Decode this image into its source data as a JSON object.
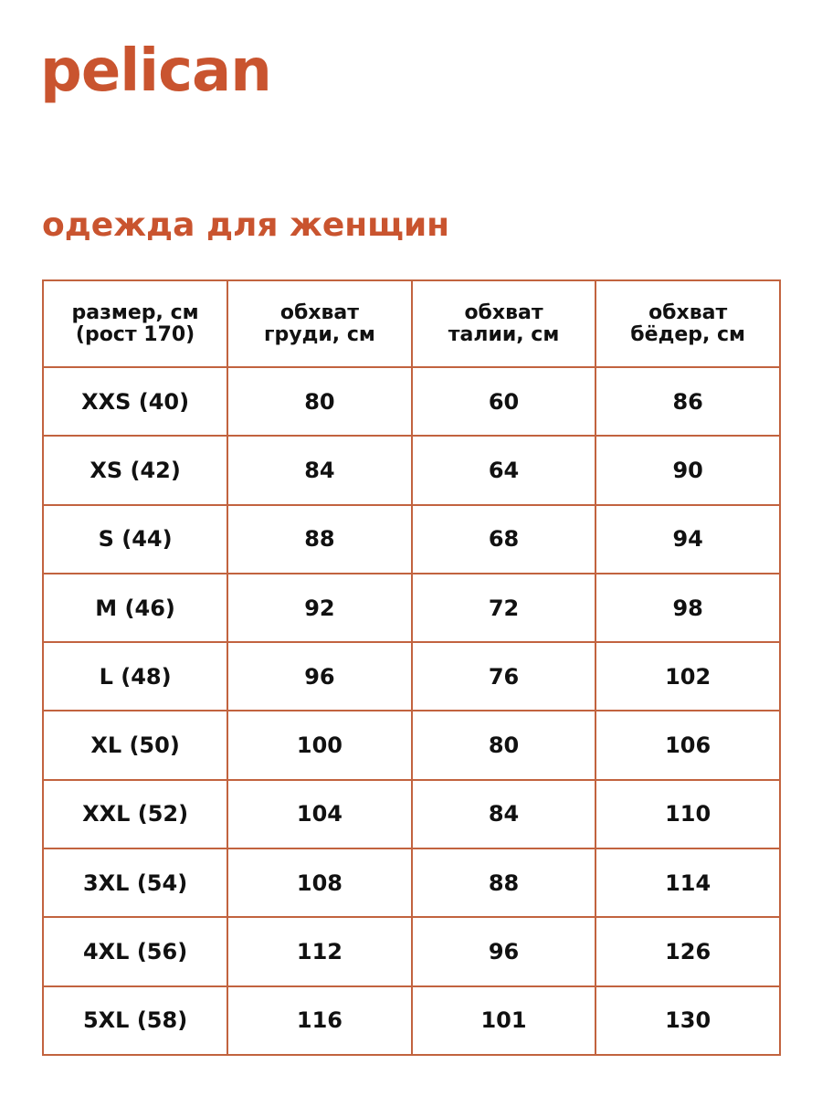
{
  "brand": {
    "logo": "pelican",
    "color": "#c9542f"
  },
  "title": "одежда для женщин",
  "table": {
    "headers": [
      [
        "размер, см",
        "(рост 170)"
      ],
      [
        "обхват",
        "груди, см"
      ],
      [
        "обхват",
        "талии, см"
      ],
      [
        "обхват",
        "бёдер, см"
      ]
    ],
    "rows": [
      [
        "XXS (40)",
        "80",
        "60",
        "86"
      ],
      [
        "XS (42)",
        "84",
        "64",
        "90"
      ],
      [
        "S (44)",
        "88",
        "68",
        "94"
      ],
      [
        "M (46)",
        "92",
        "72",
        "98"
      ],
      [
        "L (48)",
        "96",
        "76",
        "102"
      ],
      [
        "XL (50)",
        "100",
        "80",
        "106"
      ],
      [
        "XXL (52)",
        "104",
        "84",
        "110"
      ],
      [
        "3XL (54)",
        "108",
        "88",
        "114"
      ],
      [
        "4XL (56)",
        "112",
        "96",
        "126"
      ],
      [
        "5XL (58)",
        "116",
        "101",
        "130"
      ]
    ],
    "border_color": "#c2633f"
  }
}
